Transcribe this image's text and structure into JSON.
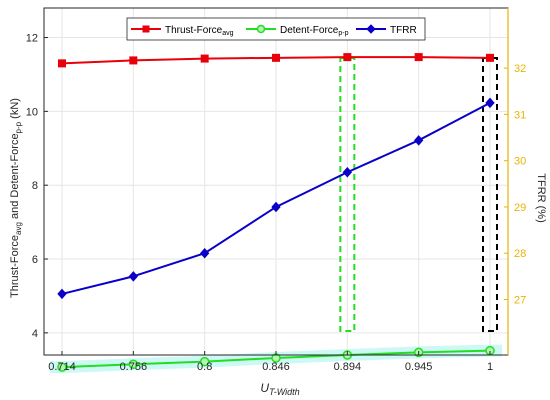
{
  "chart_data": {
    "type": "line",
    "x": [
      "0.714",
      "0.756",
      "0.8",
      "0.846",
      "0.894",
      "0.945",
      "1"
    ],
    "xlabel": {
      "main": "U",
      "sub": "T-Width"
    },
    "ylabel_left": {
      "p1": "Thrust-Force",
      "s1": "avg",
      "p2": " and Detent-Force",
      "s2": "p-p",
      "p3": " (kN)"
    },
    "ylabel_right": "TFRR (%)",
    "ylim_left": [
      3.4,
      12.8
    ],
    "ylim_right": [
      25.8,
      33.3
    ],
    "yticks_left": [
      "4",
      "6",
      "8",
      "10",
      "12"
    ],
    "yticks_right": [
      "27",
      "28",
      "29",
      "30",
      "31",
      "32"
    ],
    "grid": true,
    "legend_position": "top",
    "series": [
      {
        "name_main": "Thrust-Force",
        "name_sub": "avg",
        "axis": "left",
        "color": "#e8000b",
        "marker": "square",
        "values": [
          11.3,
          11.38,
          11.43,
          11.45,
          11.47,
          11.47,
          11.45
        ]
      },
      {
        "name_main": "Detent-Force",
        "name_sub": "p-p",
        "axis": "left",
        "color": "#22dd22",
        "marker": "circle",
        "values": [
          3.07,
          3.15,
          3.22,
          3.32,
          3.4,
          3.47,
          3.52
        ]
      },
      {
        "name_main": "TFRR",
        "name_sub": "",
        "axis": "right",
        "color": "#0a00c8",
        "marker": "diamond",
        "values": [
          27.12,
          27.5,
          28.0,
          29.0,
          29.75,
          30.44,
          31.25
        ]
      }
    ],
    "highlights": [
      {
        "x": "0.894",
        "color": "#22dd22",
        "style": "dashed"
      },
      {
        "x": "1",
        "color": "#000000",
        "style": "dashed"
      }
    ],
    "band": {
      "series": "Detent-Force",
      "color": "#c8f8f4"
    },
    "colors": {
      "right_axis": "#e8b400",
      "grid": "#e6e6e6",
      "axis": "#262626"
    }
  }
}
